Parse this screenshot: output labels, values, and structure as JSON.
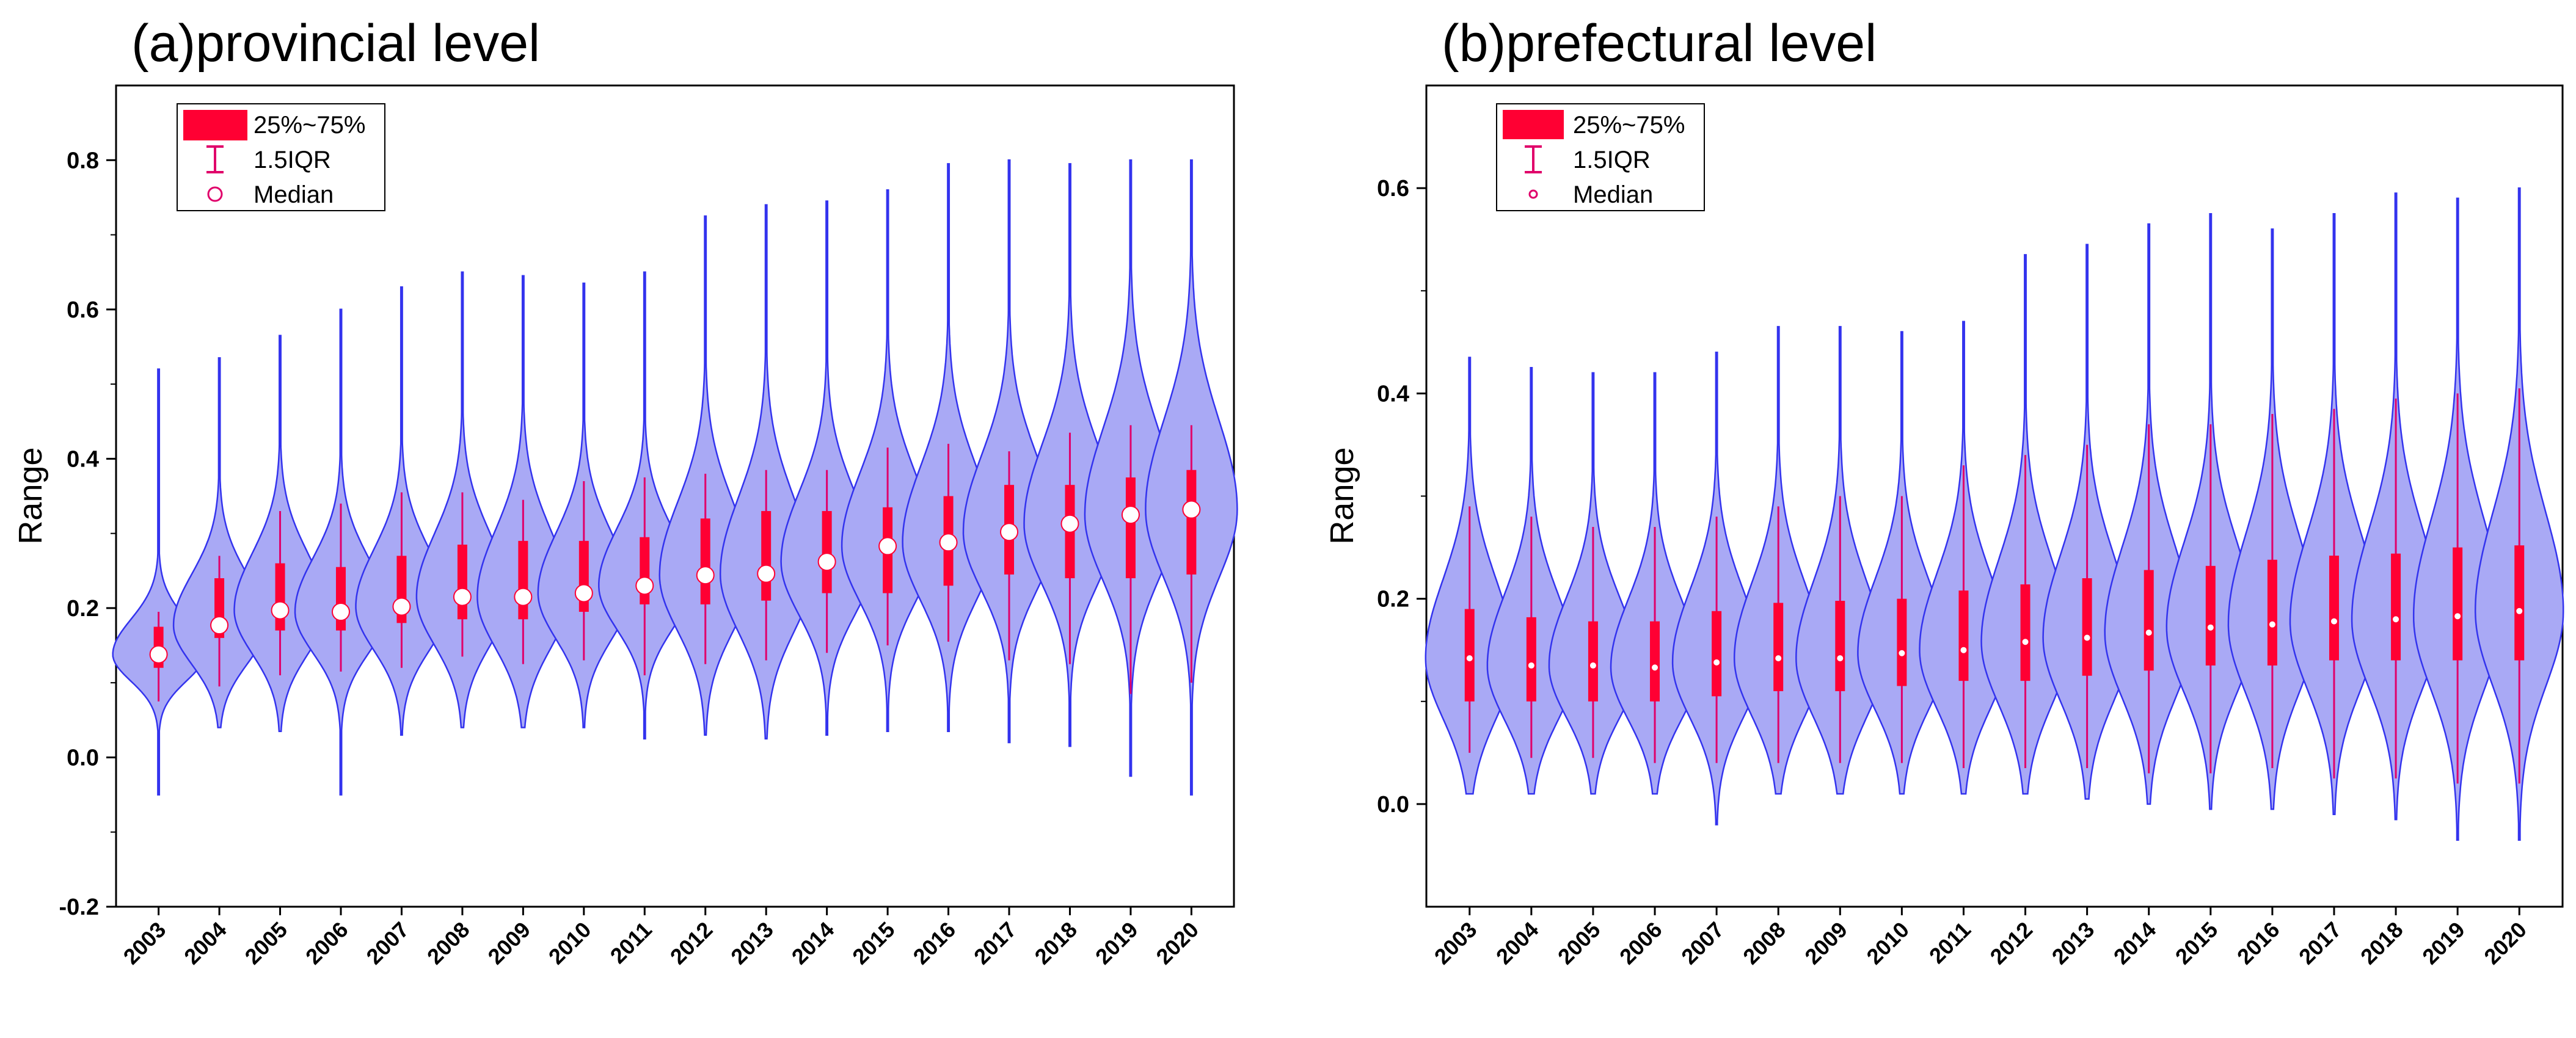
{
  "colors": {
    "violin_fill": "#A9A9F5",
    "violin_edge": "#3333EE",
    "box_fill": "#FF0033",
    "whisker": "#E0006A",
    "median_marker": "#FFFFFF",
    "axis": "#000000"
  },
  "legend": {
    "box_label": "25%~75%",
    "whisker_label": "1.5IQR",
    "median_label": "Median"
  },
  "chart_data": [
    {
      "type": "violin",
      "title": "(a)provincial level",
      "xlabel": "",
      "ylabel": "Range",
      "ylim": [
        -0.2,
        0.9
      ],
      "yticks": [
        -0.2,
        0.0,
        0.2,
        0.4,
        0.6,
        0.8
      ],
      "ytick_labels": [
        "-0.2",
        "0.0",
        "0.2",
        "0.4",
        "0.6",
        "0.8"
      ],
      "legend_position": "top-left",
      "categories": [
        "2003",
        "2004",
        "2005",
        "2006",
        "2007",
        "2008",
        "2009",
        "2010",
        "2011",
        "2012",
        "2013",
        "2014",
        "2015",
        "2016",
        "2017",
        "2018",
        "2019",
        "2020"
      ],
      "min": [
        -0.05,
        0.04,
        0.035,
        -0.05,
        0.03,
        0.04,
        0.04,
        0.04,
        0.025,
        0.03,
        0.025,
        0.03,
        0.035,
        0.035,
        0.02,
        0.015,
        -0.025,
        -0.05
      ],
      "max": [
        0.52,
        0.535,
        0.565,
        0.6,
        0.63,
        0.65,
        0.645,
        0.635,
        0.65,
        0.725,
        0.74,
        0.745,
        0.76,
        0.795,
        0.8,
        0.795,
        0.8,
        0.8
      ],
      "q1": [
        0.12,
        0.16,
        0.17,
        0.17,
        0.18,
        0.185,
        0.185,
        0.195,
        0.205,
        0.205,
        0.21,
        0.22,
        0.22,
        0.23,
        0.245,
        0.24,
        0.24,
        0.245
      ],
      "median": [
        0.138,
        0.177,
        0.197,
        0.195,
        0.202,
        0.215,
        0.215,
        0.22,
        0.23,
        0.244,
        0.246,
        0.262,
        0.283,
        0.288,
        0.302,
        0.313,
        0.325,
        0.332
      ],
      "q3": [
        0.175,
        0.24,
        0.26,
        0.255,
        0.27,
        0.285,
        0.29,
        0.29,
        0.295,
        0.32,
        0.33,
        0.33,
        0.335,
        0.35,
        0.365,
        0.365,
        0.375,
        0.385
      ],
      "whisker_low": [
        0.075,
        0.095,
        0.11,
        0.115,
        0.12,
        0.135,
        0.125,
        0.13,
        0.11,
        0.125,
        0.13,
        0.14,
        0.15,
        0.155,
        0.13,
        0.125,
        0.085,
        0.1
      ],
      "whisker_high": [
        0.195,
        0.27,
        0.33,
        0.34,
        0.355,
        0.355,
        0.345,
        0.37,
        0.375,
        0.38,
        0.385,
        0.385,
        0.415,
        0.42,
        0.41,
        0.435,
        0.445,
        0.445
      ]
    },
    {
      "type": "violin",
      "title": "(b)prefectural level",
      "xlabel": "",
      "ylabel": "Range",
      "ylim": [
        -0.1,
        0.7
      ],
      "yticks": [
        0.0,
        0.2,
        0.4,
        0.6
      ],
      "ytick_labels": [
        "0.0",
        "0.2",
        "0.4",
        "0.6"
      ],
      "legend_position": "top-left",
      "categories": [
        "2003",
        "2004",
        "2005",
        "2006",
        "2007",
        "2008",
        "2009",
        "2010",
        "2011",
        "2012",
        "2013",
        "2014",
        "2015",
        "2016",
        "2017",
        "2018",
        "2019",
        "2020"
      ],
      "min": [
        0.01,
        0.01,
        0.01,
        0.01,
        -0.02,
        0.01,
        0.01,
        0.01,
        0.01,
        0.01,
        0.005,
        0.0,
        -0.005,
        -0.005,
        -0.01,
        -0.015,
        -0.035,
        -0.035
      ],
      "max": [
        0.435,
        0.425,
        0.42,
        0.42,
        0.44,
        0.465,
        0.465,
        0.46,
        0.47,
        0.535,
        0.545,
        0.565,
        0.575,
        0.56,
        0.575,
        0.595,
        0.59,
        0.6
      ],
      "q1": [
        0.1,
        0.1,
        0.1,
        0.1,
        0.105,
        0.11,
        0.11,
        0.115,
        0.12,
        0.12,
        0.125,
        0.13,
        0.135,
        0.135,
        0.14,
        0.14,
        0.14,
        0.14
      ],
      "median": [
        0.142,
        0.135,
        0.135,
        0.133,
        0.138,
        0.142,
        0.142,
        0.147,
        0.15,
        0.158,
        0.162,
        0.167,
        0.172,
        0.175,
        0.178,
        0.18,
        0.183,
        0.188
      ],
      "q3": [
        0.19,
        0.182,
        0.178,
        0.178,
        0.188,
        0.196,
        0.198,
        0.2,
        0.208,
        0.214,
        0.22,
        0.228,
        0.232,
        0.238,
        0.242,
        0.244,
        0.25,
        0.252
      ],
      "whisker_low": [
        0.05,
        0.045,
        0.045,
        0.04,
        0.04,
        0.04,
        0.04,
        0.04,
        0.035,
        0.035,
        0.035,
        0.03,
        0.03,
        0.035,
        0.025,
        0.025,
        0.02,
        0.02
      ],
      "whisker_high": [
        0.29,
        0.28,
        0.27,
        0.27,
        0.28,
        0.29,
        0.3,
        0.3,
        0.33,
        0.34,
        0.35,
        0.37,
        0.37,
        0.38,
        0.385,
        0.395,
        0.4,
        0.405
      ]
    }
  ]
}
